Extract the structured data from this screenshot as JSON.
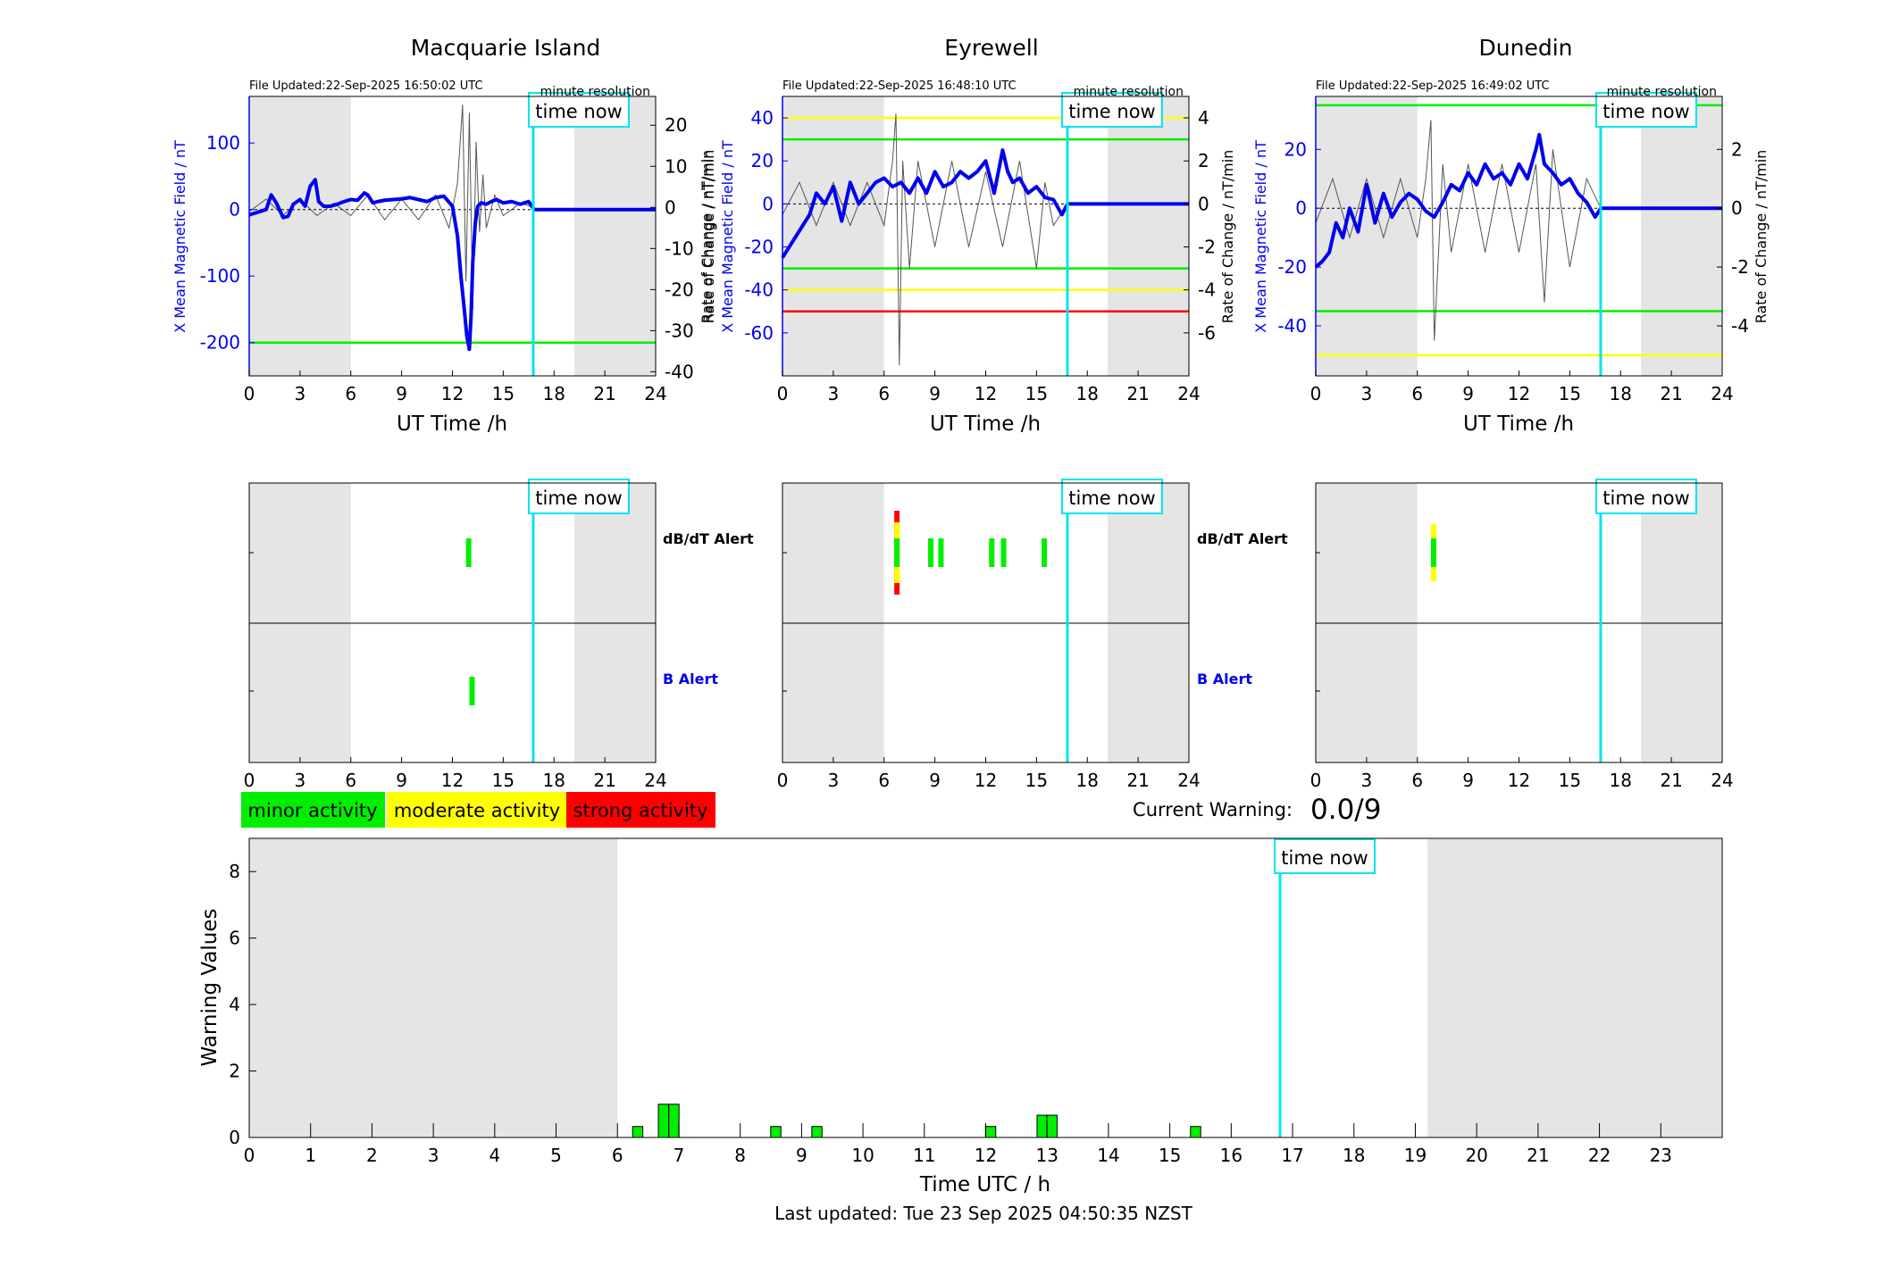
{
  "colors": {
    "field_line": "#0000ee",
    "roc_line": "#555555",
    "minor": "#00ee00",
    "moderate": "#ffff00",
    "strong": "#ff0000",
    "time_now": "#00e5ee",
    "night_shade": "#e5e5e5",
    "warning_bar": "#00ee00"
  },
  "labels": {
    "minute_resolution": "minute resolution",
    "time_now": "time now",
    "ut_time": "UT Time /h",
    "y_left": "X Mean Magnetic Field / nT",
    "y_right": "Rate of Change / nT/min",
    "dbdt_alert": "dB/dT Alert",
    "b_alert": "B Alert",
    "current_warning_label": "Current Warning:",
    "current_warning_value": "0.0/9",
    "bottom_xlabel": "Time UTC / h",
    "bottom_ylabel": "Warning Values",
    "last_updated": "Last updated: Tue 23 Sep 2025 04:50:35 NZST"
  },
  "legend": [
    {
      "label": "minor activity",
      "color": "#00ee00"
    },
    {
      "label": "moderate activity",
      "color": "#ffff00"
    },
    {
      "label": "strong activity",
      "color": "#ff0000"
    }
  ],
  "chart_data": [
    {
      "type": "line",
      "station": "Macquarie Island",
      "file_updated": "File Updated:22-Sep-2025 16:50:02 UTC",
      "xlim": [
        0,
        24
      ],
      "xticks": [
        0,
        3,
        6,
        9,
        12,
        15,
        18,
        21,
        24
      ],
      "ylim": [
        -250,
        170
      ],
      "yticks": [
        -200,
        -100,
        0,
        100
      ],
      "y2lim": [
        -41,
        27
      ],
      "y2ticks": [
        -40,
        -30,
        -20,
        -10,
        0,
        10,
        20
      ],
      "time_now": 16.83,
      "night": [
        [
          0,
          6
        ],
        [
          19.2,
          24
        ]
      ],
      "field_series": {
        "name": "X Mean Magnetic Field",
        "x": [
          0,
          0.5,
          1,
          1.3,
          1.6,
          2,
          2.3,
          2.6,
          3,
          3.3,
          3.6,
          3.9,
          4.1,
          4.4,
          4.8,
          5.2,
          5.6,
          6,
          6.4,
          6.8,
          7,
          7.3,
          7.6,
          8,
          8.5,
          9,
          9.5,
          10,
          10.5,
          11,
          11.5,
          12,
          12.3,
          12.5,
          12.7,
          12.85,
          13,
          13.1,
          13.2,
          13.35,
          13.5,
          13.7,
          14,
          14.3,
          14.6,
          15,
          15.5,
          16,
          16.5,
          16.83,
          24
        ],
        "y": [
          -8,
          -4,
          0,
          22,
          10,
          -12,
          -10,
          8,
          15,
          5,
          35,
          45,
          12,
          5,
          5,
          8,
          12,
          15,
          14,
          25,
          22,
          10,
          12,
          14,
          15,
          16,
          18,
          15,
          12,
          18,
          20,
          5,
          -40,
          -100,
          -150,
          -190,
          -210,
          -160,
          -80,
          -20,
          5,
          10,
          8,
          12,
          15,
          10,
          12,
          8,
          12,
          0,
          0
        ]
      },
      "roc_series": {
        "name": "Rate of Change",
        "x": [
          0,
          1,
          2,
          3,
          4,
          5,
          6,
          7,
          8,
          9,
          10,
          11,
          11.8,
          12.3,
          12.6,
          12.8,
          13,
          13.2,
          13.4,
          13.6,
          13.8,
          14,
          14.5,
          15,
          16,
          16.83
        ],
        "y": [
          -1,
          2,
          -2,
          2,
          -2,
          1,
          -2,
          3,
          -3,
          2,
          -3,
          3,
          -5,
          6,
          25,
          -18,
          23,
          -25,
          16,
          -6,
          8,
          -5,
          3,
          -2,
          1,
          0
        ]
      },
      "hlines": [
        {
          "y": -200,
          "color": "#00ee00"
        }
      ],
      "dbdt_alerts": [
        {
          "start": 12.8,
          "end": 13.1,
          "level": "minor"
        }
      ],
      "b_alerts": [
        {
          "start": 13.0,
          "end": 13.3,
          "level": "minor"
        }
      ]
    },
    {
      "type": "line",
      "station": "Eyrewell",
      "file_updated": "File Updated:22-Sep-2025 16:48:10 UTC",
      "xlim": [
        0,
        24
      ],
      "xticks": [
        0,
        3,
        6,
        9,
        12,
        15,
        18,
        21,
        24
      ],
      "ylim": [
        -80,
        50
      ],
      "yticks": [
        -60,
        -40,
        -20,
        0,
        20,
        40
      ],
      "y2lim": [
        -8,
        5
      ],
      "y2ticks": [
        -6,
        -4,
        -2,
        0,
        2,
        4
      ],
      "time_now": 16.83,
      "night": [
        [
          0,
          6
        ],
        [
          19.2,
          24
        ]
      ],
      "field_series": {
        "name": "X Mean Magnetic Field",
        "x": [
          0,
          0.4,
          0.8,
          1.2,
          1.6,
          2,
          2.5,
          3,
          3.5,
          4,
          4.5,
          5,
          5.5,
          6,
          6.5,
          7,
          7.5,
          8,
          8.5,
          9,
          9.5,
          10,
          10.5,
          11,
          11.5,
          12,
          12.5,
          13,
          13.3,
          13.6,
          14,
          14.5,
          15,
          15.5,
          16,
          16.5,
          16.83,
          24
        ],
        "y": [
          -25,
          -20,
          -15,
          -10,
          -5,
          5,
          0,
          8,
          -8,
          10,
          0,
          5,
          10,
          12,
          8,
          10,
          5,
          12,
          5,
          15,
          8,
          10,
          15,
          12,
          15,
          20,
          5,
          25,
          15,
          10,
          12,
          5,
          8,
          3,
          2,
          -5,
          0,
          0
        ]
      },
      "roc_series": {
        "name": "Rate of Change",
        "x": [
          0,
          1,
          2,
          3,
          4,
          5,
          6,
          6.5,
          6.7,
          6.9,
          7.1,
          7.5,
          8,
          9,
          10,
          11,
          12,
          13,
          14,
          15,
          15.5,
          16,
          16.83
        ],
        "y": [
          -0.5,
          1,
          -1,
          1,
          -1,
          1,
          -1,
          2,
          4.2,
          -7.5,
          2,
          -3,
          2,
          -2,
          2,
          -2,
          1.5,
          -2,
          2,
          -3,
          1,
          -1,
          0
        ]
      },
      "hlines": [
        {
          "y": 40,
          "color": "#ffff00"
        },
        {
          "y": 30,
          "color": "#00ee00"
        },
        {
          "y": -30,
          "color": "#00ee00"
        },
        {
          "y": -40,
          "color": "#ffff00"
        },
        {
          "y": -50,
          "color": "#ff0000"
        }
      ],
      "dbdt_alerts": [
        {
          "start": 6.6,
          "end": 6.9,
          "level": "strong"
        },
        {
          "start": 8.6,
          "end": 8.8,
          "level": "minor"
        },
        {
          "start": 9.2,
          "end": 9.4,
          "level": "minor"
        },
        {
          "start": 12.2,
          "end": 12.4,
          "level": "minor"
        },
        {
          "start": 12.9,
          "end": 13.1,
          "level": "minor"
        },
        {
          "start": 15.3,
          "end": 15.5,
          "level": "minor"
        }
      ],
      "b_alerts": []
    },
    {
      "type": "line",
      "station": "Dunedin",
      "file_updated": "File Updated:22-Sep-2025 16:49:02 UTC",
      "xlim": [
        0,
        24
      ],
      "xticks": [
        0,
        3,
        6,
        9,
        12,
        15,
        18,
        21,
        24
      ],
      "ylim": [
        -57,
        38
      ],
      "yticks": [
        -40,
        -20,
        0,
        20
      ],
      "y2lim": [
        -5.7,
        3.8
      ],
      "y2ticks": [
        -4,
        -2,
        0,
        2
      ],
      "time_now": 16.83,
      "night": [
        [
          0,
          6
        ],
        [
          19.2,
          24
        ]
      ],
      "field_series": {
        "name": "X Mean Magnetic Field",
        "x": [
          0,
          0.4,
          0.8,
          1.2,
          1.6,
          2,
          2.5,
          3,
          3.5,
          4,
          4.5,
          5,
          5.5,
          6,
          6.5,
          7,
          7.5,
          8,
          8.5,
          9,
          9.5,
          10,
          10.5,
          11,
          11.5,
          12,
          12.5,
          13,
          13.2,
          13.5,
          14,
          14.5,
          15,
          15.5,
          16,
          16.5,
          16.83,
          24
        ],
        "y": [
          -20,
          -18,
          -15,
          -5,
          -10,
          0,
          -8,
          8,
          -5,
          5,
          -3,
          2,
          5,
          3,
          -1,
          -3,
          2,
          8,
          6,
          12,
          8,
          15,
          10,
          12,
          8,
          15,
          10,
          20,
          25,
          15,
          12,
          8,
          10,
          5,
          2,
          -3,
          0,
          0
        ]
      },
      "roc_series": {
        "name": "Rate of Change",
        "x": [
          0,
          1,
          2,
          3,
          4,
          5,
          6,
          6.5,
          6.8,
          7,
          7.5,
          8,
          9,
          10,
          11,
          12,
          13,
          13.5,
          14,
          15,
          16,
          16.83
        ],
        "y": [
          -0.5,
          1,
          -1,
          1,
          -1,
          1,
          -1,
          1,
          3,
          -4.5,
          1.5,
          -1.5,
          1.5,
          -1.5,
          1.5,
          -1.5,
          1.5,
          -3.2,
          2,
          -2,
          1,
          0
        ]
      },
      "hlines": [
        {
          "y": 35,
          "color": "#00ee00"
        },
        {
          "y": -35,
          "color": "#00ee00"
        },
        {
          "y": -50,
          "color": "#ffff00"
        }
      ],
      "dbdt_alerts": [
        {
          "start": 6.8,
          "end": 7.1,
          "level": "moderate"
        }
      ],
      "b_alerts": []
    },
    {
      "type": "bar",
      "xlim": [
        0,
        24
      ],
      "xticks": [
        0,
        1,
        2,
        3,
        4,
        5,
        6,
        7,
        8,
        9,
        10,
        11,
        12,
        13,
        14,
        15,
        16,
        17,
        18,
        19,
        20,
        21,
        22,
        23
      ],
      "ylim": [
        0,
        9
      ],
      "yticks": [
        0,
        2,
        4,
        6,
        8
      ],
      "time_now": 16.83,
      "night": [
        [
          0,
          6
        ],
        [
          19.2,
          24
        ]
      ],
      "bars": [
        {
          "x": 6.33,
          "value": 0.33
        },
        {
          "x": 6.75,
          "value": 1.0
        },
        {
          "x": 6.92,
          "value": 1.0
        },
        {
          "x": 8.58,
          "value": 0.33
        },
        {
          "x": 9.25,
          "value": 0.33
        },
        {
          "x": 12.08,
          "value": 0.33
        },
        {
          "x": 12.92,
          "value": 0.67
        },
        {
          "x": 13.08,
          "value": 0.67
        },
        {
          "x": 15.42,
          "value": 0.33
        }
      ]
    }
  ]
}
